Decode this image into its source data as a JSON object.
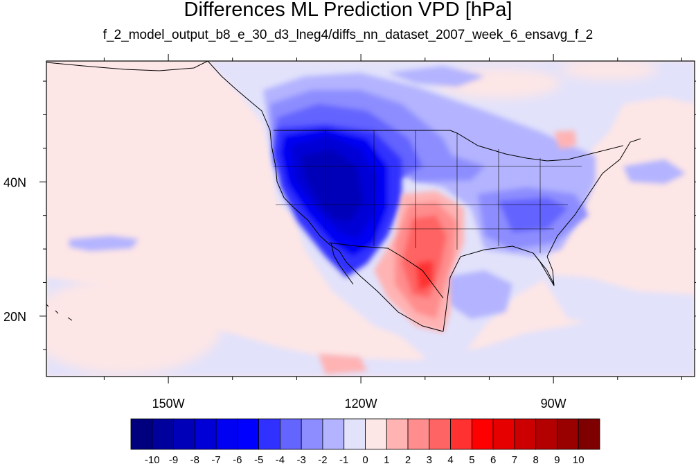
{
  "title": "Differences ML Prediction VPD [hPa]",
  "subtitle": "f_2_model_output_b8_e_30_d3_lneg4/diffs_nn_dataset_2007_week_6_ensavg_f_2",
  "map": {
    "lon_range": [
      -169,
      -68
    ],
    "lat_range": [
      11,
      58
    ],
    "x_ticks": [
      {
        "lon": -150,
        "label": "150W"
      },
      {
        "lon": -120,
        "label": "120W"
      },
      {
        "lon": -90,
        "label": "90W"
      }
    ],
    "y_ticks": [
      {
        "lat": 40,
        "label": "40N"
      },
      {
        "lat": 20,
        "label": "20N"
      }
    ]
  },
  "colorbar": {
    "colors": [
      "#00007f",
      "#00009c",
      "#0000b9",
      "#0000d6",
      "#0000f3",
      "#0000ff",
      "#3131ff",
      "#6464ff",
      "#8d8dff",
      "#b3b3ff",
      "#e2e2fb",
      "#fde6e6",
      "#ffb3b3",
      "#ff8d8d",
      "#ff6464",
      "#ff3131",
      "#ff0000",
      "#e60000",
      "#cc0000",
      "#b30000",
      "#990000",
      "#7f0000"
    ],
    "labels": [
      "-10",
      "-9",
      "-8",
      "-7",
      "-6",
      "-5",
      "-4",
      "-3",
      "-2",
      "-1",
      "0",
      "1",
      "2",
      "3",
      "4",
      "5",
      "6",
      "7",
      "8",
      "9",
      "10"
    ]
  }
}
